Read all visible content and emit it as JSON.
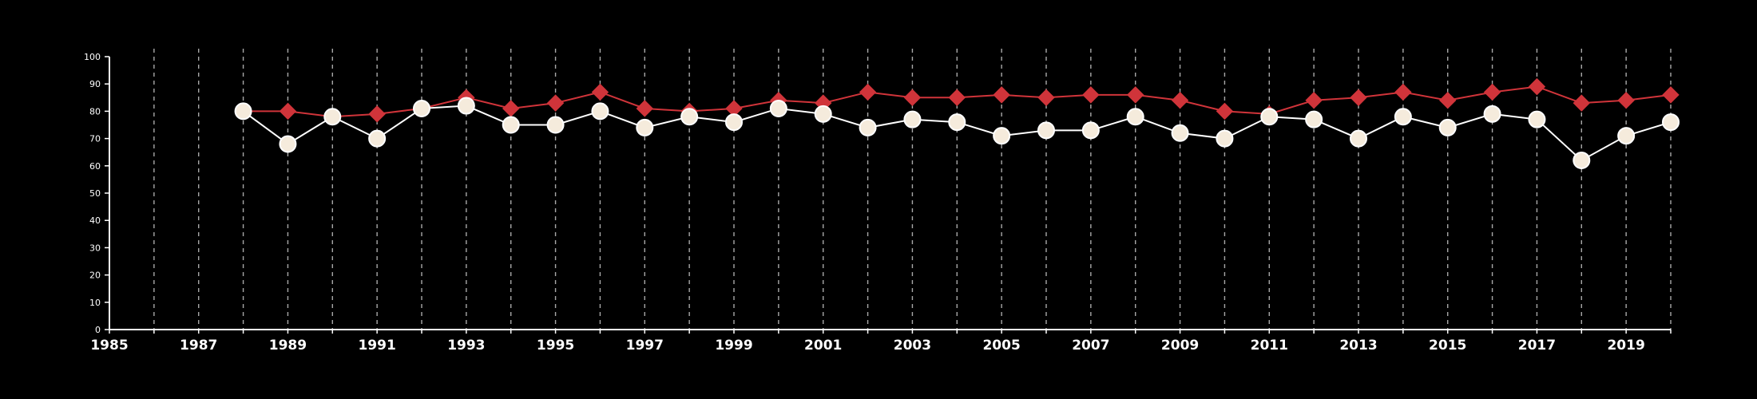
{
  "chart_data": {
    "type": "line",
    "title": "",
    "xlabel": "",
    "ylabel": "",
    "xlim": [
      1985,
      2020
    ],
    "ylim": [
      0,
      100
    ],
    "x_ticks": [
      1985,
      1987,
      1989,
      1991,
      1993,
      1995,
      1997,
      1999,
      2001,
      2003,
      2005,
      2007,
      2009,
      2011,
      2013,
      2015,
      2017,
      2019
    ],
    "y_ticks": [
      0,
      10,
      20,
      30,
      40,
      50,
      60,
      70,
      80,
      90,
      100
    ],
    "grid": "vertical dashed lines at every year",
    "legend": "none",
    "x": [
      1988,
      1989,
      1990,
      1991,
      1992,
      1993,
      1994,
      1995,
      1996,
      1997,
      1998,
      1999,
      2000,
      2001,
      2002,
      2003,
      2004,
      2005,
      2006,
      2007,
      2008,
      2009,
      2010,
      2011,
      2012,
      2013,
      2014,
      2015,
      2016,
      2017,
      2018,
      2019,
      2020
    ],
    "series": [
      {
        "marker": "diamond",
        "color": "#d0343a",
        "values": [
          80,
          80,
          78,
          79,
          81,
          85,
          81,
          83,
          87,
          81,
          80,
          81,
          84,
          83,
          87,
          85,
          85,
          86,
          85,
          86,
          86,
          84,
          80,
          79,
          84,
          85,
          87,
          84,
          87,
          89,
          83,
          84,
          86
        ]
      },
      {
        "marker": "circle",
        "color": "#ffffff",
        "fill": "#f5ebdc",
        "values": [
          80,
          68,
          78,
          70,
          81,
          82,
          75,
          75,
          80,
          74,
          78,
          76,
          81,
          79,
          74,
          77,
          76,
          71,
          73,
          73,
          78,
          72,
          70,
          78,
          77,
          70,
          78,
          74,
          79,
          77,
          62,
          71,
          76
        ]
      }
    ]
  }
}
